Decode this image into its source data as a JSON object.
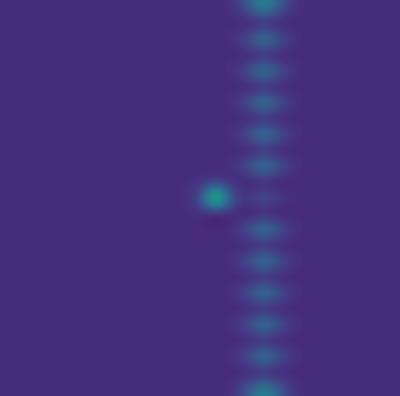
{
  "chart_data": {
    "type": "heatmap",
    "color": "viridis",
    "tick_labels": false,
    "cells": [
      [
        0.13,
        0.13,
        0.13,
        0.13,
        0.13,
        0.13,
        0.13,
        0.13,
        0.13,
        0.13,
        0.13,
        0.13,
        0.13,
        0.13,
        0.13,
        0.28,
        0.5,
        0.28,
        0.13,
        0.13,
        0.13,
        0.13,
        0.13,
        0.13,
        0.13
      ],
      [
        0.13,
        0.13,
        0.13,
        0.13,
        0.13,
        0.13,
        0.13,
        0.13,
        0.13,
        0.13,
        0.13,
        0.13,
        0.13,
        0.13,
        0.13,
        0.06,
        0.06,
        0.06,
        0.13,
        0.13,
        0.13,
        0.13,
        0.13,
        0.13,
        0.13
      ],
      [
        0.13,
        0.13,
        0.13,
        0.13,
        0.13,
        0.13,
        0.13,
        0.13,
        0.13,
        0.13,
        0.13,
        0.13,
        0.13,
        0.13,
        0.13,
        0.28,
        0.5,
        0.28,
        0.13,
        0.13,
        0.13,
        0.13,
        0.13,
        0.13,
        0.13
      ],
      [
        0.13,
        0.13,
        0.13,
        0.13,
        0.13,
        0.13,
        0.13,
        0.13,
        0.13,
        0.13,
        0.13,
        0.13,
        0.13,
        0.13,
        0.13,
        0.06,
        0.06,
        0.06,
        0.13,
        0.13,
        0.13,
        0.13,
        0.13,
        0.13,
        0.13
      ],
      [
        0.13,
        0.13,
        0.13,
        0.13,
        0.13,
        0.13,
        0.13,
        0.13,
        0.13,
        0.13,
        0.13,
        0.13,
        0.13,
        0.13,
        0.13,
        0.28,
        0.5,
        0.28,
        0.13,
        0.13,
        0.13,
        0.13,
        0.13,
        0.13,
        0.13
      ],
      [
        0.13,
        0.13,
        0.13,
        0.13,
        0.13,
        0.13,
        0.13,
        0.13,
        0.13,
        0.13,
        0.13,
        0.13,
        0.13,
        0.13,
        0.13,
        0.06,
        0.06,
        0.06,
        0.13,
        0.13,
        0.13,
        0.13,
        0.13,
        0.13,
        0.13
      ],
      [
        0.13,
        0.13,
        0.13,
        0.13,
        0.13,
        0.13,
        0.13,
        0.13,
        0.13,
        0.13,
        0.13,
        0.13,
        0.13,
        0.13,
        0.13,
        0.28,
        0.5,
        0.28,
        0.13,
        0.13,
        0.13,
        0.13,
        0.13,
        0.13,
        0.13
      ],
      [
        0.13,
        0.13,
        0.13,
        0.13,
        0.13,
        0.13,
        0.13,
        0.13,
        0.13,
        0.13,
        0.13,
        0.13,
        0.13,
        0.13,
        0.13,
        0.06,
        0.06,
        0.06,
        0.13,
        0.13,
        0.13,
        0.13,
        0.13,
        0.13,
        0.13
      ],
      [
        0.13,
        0.13,
        0.13,
        0.13,
        0.13,
        0.13,
        0.13,
        0.13,
        0.13,
        0.13,
        0.13,
        0.13,
        0.13,
        0.13,
        0.13,
        0.28,
        0.5,
        0.28,
        0.13,
        0.13,
        0.13,
        0.13,
        0.13,
        0.13,
        0.13
      ],
      [
        0.13,
        0.13,
        0.13,
        0.13,
        0.13,
        0.13,
        0.13,
        0.13,
        0.13,
        0.13,
        0.13,
        0.13,
        0.13,
        0.13,
        0.13,
        0.06,
        0.06,
        0.06,
        0.13,
        0.13,
        0.13,
        0.13,
        0.13,
        0.13,
        0.13
      ],
      [
        0.13,
        0.13,
        0.13,
        0.13,
        0.13,
        0.13,
        0.13,
        0.13,
        0.13,
        0.13,
        0.13,
        0.13,
        0.13,
        0.13,
        0.13,
        0.28,
        0.5,
        0.28,
        0.13,
        0.13,
        0.13,
        0.13,
        0.13,
        0.13,
        0.13
      ],
      [
        0.13,
        0.13,
        0.13,
        0.13,
        0.13,
        0.13,
        0.13,
        0.13,
        0.13,
        0.13,
        0.13,
        0.13,
        0.13,
        0.13,
        0.13,
        0.06,
        0.06,
        0.06,
        0.13,
        0.13,
        0.13,
        0.13,
        0.13,
        0.13,
        0.13
      ],
      [
        0.13,
        0.13,
        0.13,
        0.13,
        0.13,
        0.13,
        0.13,
        0.13,
        0.13,
        0.13,
        0.13,
        0.13,
        0.2,
        1.0,
        0.2,
        0.2,
        0.3,
        0.2,
        0.13,
        0.13,
        0.13,
        0.13,
        0.13,
        0.13,
        0.13
      ],
      [
        0.13,
        0.13,
        0.13,
        0.13,
        0.13,
        0.13,
        0.13,
        0.13,
        0.13,
        0.13,
        0.13,
        0.13,
        0.13,
        0.0,
        0.13,
        0.06,
        0.06,
        0.06,
        0.13,
        0.13,
        0.13,
        0.13,
        0.13,
        0.13,
        0.13
      ],
      [
        0.13,
        0.13,
        0.13,
        0.13,
        0.13,
        0.13,
        0.13,
        0.13,
        0.13,
        0.13,
        0.13,
        0.13,
        0.13,
        0.13,
        0.13,
        0.28,
        0.5,
        0.28,
        0.13,
        0.13,
        0.13,
        0.13,
        0.13,
        0.13,
        0.13
      ],
      [
        0.13,
        0.13,
        0.13,
        0.13,
        0.13,
        0.13,
        0.13,
        0.13,
        0.13,
        0.13,
        0.13,
        0.13,
        0.13,
        0.13,
        0.13,
        0.06,
        0.06,
        0.06,
        0.13,
        0.13,
        0.13,
        0.13,
        0.13,
        0.13,
        0.13
      ],
      [
        0.13,
        0.13,
        0.13,
        0.13,
        0.13,
        0.13,
        0.13,
        0.13,
        0.13,
        0.13,
        0.13,
        0.13,
        0.13,
        0.13,
        0.13,
        0.28,
        0.5,
        0.28,
        0.13,
        0.13,
        0.13,
        0.13,
        0.13,
        0.13,
        0.13
      ],
      [
        0.13,
        0.13,
        0.13,
        0.13,
        0.13,
        0.13,
        0.13,
        0.13,
        0.13,
        0.13,
        0.13,
        0.13,
        0.13,
        0.13,
        0.13,
        0.06,
        0.06,
        0.06,
        0.13,
        0.13,
        0.13,
        0.13,
        0.13,
        0.13,
        0.13
      ],
      [
        0.13,
        0.13,
        0.13,
        0.13,
        0.13,
        0.13,
        0.13,
        0.13,
        0.13,
        0.13,
        0.13,
        0.13,
        0.13,
        0.13,
        0.13,
        0.28,
        0.5,
        0.28,
        0.13,
        0.13,
        0.13,
        0.13,
        0.13,
        0.13,
        0.13
      ],
      [
        0.13,
        0.13,
        0.13,
        0.13,
        0.13,
        0.13,
        0.13,
        0.13,
        0.13,
        0.13,
        0.13,
        0.13,
        0.13,
        0.13,
        0.13,
        0.06,
        0.06,
        0.06,
        0.13,
        0.13,
        0.13,
        0.13,
        0.13,
        0.13,
        0.13
      ],
      [
        0.13,
        0.13,
        0.13,
        0.13,
        0.13,
        0.13,
        0.13,
        0.13,
        0.13,
        0.13,
        0.13,
        0.13,
        0.13,
        0.13,
        0.13,
        0.28,
        0.5,
        0.28,
        0.13,
        0.13,
        0.13,
        0.13,
        0.13,
        0.13,
        0.13
      ],
      [
        0.13,
        0.13,
        0.13,
        0.13,
        0.13,
        0.13,
        0.13,
        0.13,
        0.13,
        0.13,
        0.13,
        0.13,
        0.13,
        0.13,
        0.13,
        0.06,
        0.06,
        0.06,
        0.13,
        0.13,
        0.13,
        0.13,
        0.13,
        0.13,
        0.13
      ],
      [
        0.13,
        0.13,
        0.13,
        0.13,
        0.13,
        0.13,
        0.13,
        0.13,
        0.13,
        0.13,
        0.13,
        0.13,
        0.13,
        0.13,
        0.13,
        0.28,
        0.5,
        0.28,
        0.13,
        0.13,
        0.13,
        0.13,
        0.13,
        0.13,
        0.13
      ],
      [
        0.13,
        0.13,
        0.13,
        0.13,
        0.13,
        0.13,
        0.13,
        0.13,
        0.13,
        0.13,
        0.13,
        0.13,
        0.13,
        0.13,
        0.13,
        0.06,
        0.06,
        0.06,
        0.13,
        0.13,
        0.13,
        0.13,
        0.13,
        0.13,
        0.13
      ],
      [
        0.13,
        0.13,
        0.13,
        0.13,
        0.13,
        0.13,
        0.13,
        0.13,
        0.13,
        0.13,
        0.13,
        0.13,
        0.13,
        0.13,
        0.13,
        0.28,
        0.5,
        0.28,
        0.13,
        0.13,
        0.13,
        0.13,
        0.13,
        0.13,
        0.13
      ]
    ]
  }
}
